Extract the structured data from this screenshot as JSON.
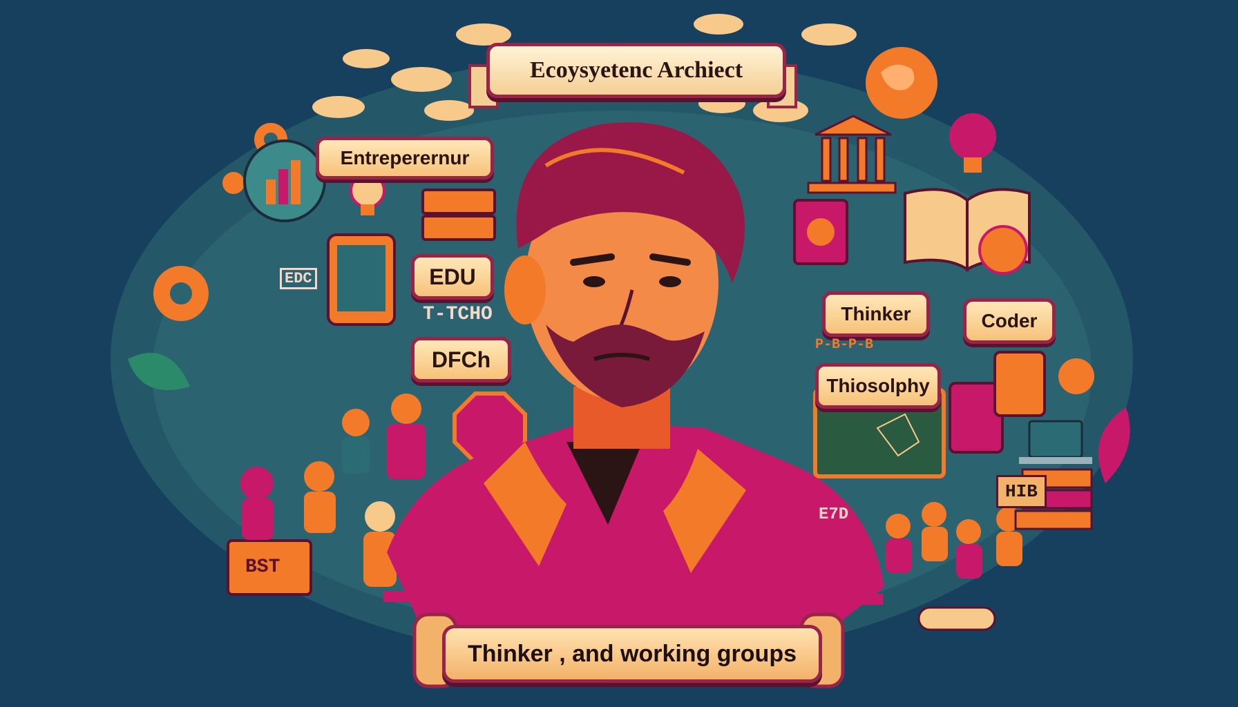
{
  "title": "Ecoysyetenc Archiect",
  "labels": {
    "entrepreneur": "Entreperernur",
    "edu": "EDU",
    "techo": "T-TCHO",
    "dfch": "DFCh",
    "edc": "EDC",
    "thinker": "Thinker",
    "coder": "Coder",
    "philosophy": "Thiosolphy",
    "e7d": "E7D",
    "hib": "HIB",
    "best": "BST",
    "pbar": "P-B-P-B"
  },
  "bottom_banner": "Thinker , and working groups",
  "colors": {
    "background": "#16405e",
    "magenta": "#c8186a",
    "orange": "#f27a28",
    "cream": "#ffe7b8",
    "teal": "#2a6b74"
  }
}
